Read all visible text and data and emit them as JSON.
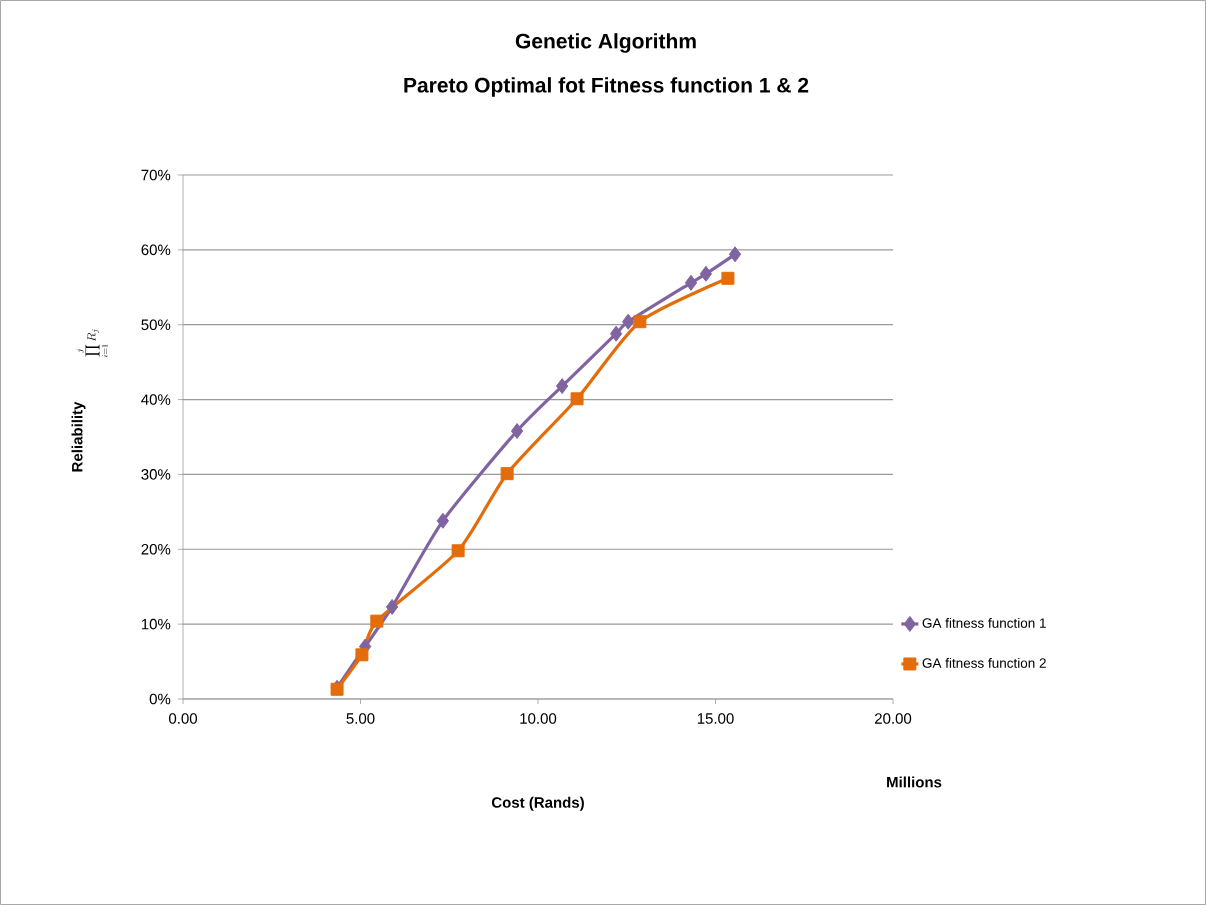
{
  "chart_data": {
    "type": "line",
    "title": "Genetic Algorithm",
    "subtitle": "Pareto Optimal fot Fitness function 1 & 2",
    "xlabel": "Cost (Rands)",
    "ylabel": "Reliability",
    "annotations": [
      "Millions",
      "\\prod_{i=1}^{j} R_j"
    ],
    "xlim": [
      0,
      20
    ],
    "xticks": [
      {
        "value": 0,
        "label": "0.00"
      },
      {
        "value": 5,
        "label": "5.00"
      },
      {
        "value": 10,
        "label": "10.00"
      },
      {
        "value": 15,
        "label": "15.00"
      },
      {
        "value": 20,
        "label": "20.00"
      }
    ],
    "ylim": [
      0,
      70
    ],
    "yticks": [
      {
        "value": 0,
        "label": "0%"
      },
      {
        "value": 10,
        "label": "10%"
      },
      {
        "value": 20,
        "label": "20%"
      },
      {
        "value": 30,
        "label": "30%"
      },
      {
        "value": 40,
        "label": "40%"
      },
      {
        "value": 50,
        "label": "50%"
      },
      {
        "value": 60,
        "label": "60%"
      },
      {
        "value": 70,
        "label": "70%"
      }
    ],
    "grid": "y",
    "legend": "right",
    "line_style": "solid",
    "series": [
      {
        "name": "GA fitness function 1",
        "color": "#8064a2",
        "marker": "diamond",
        "x": [
          4.34,
          5.13,
          5.89,
          7.32,
          9.41,
          10.68,
          12.2,
          12.54,
          14.31,
          14.73,
          15.55
        ],
        "values": [
          1.5,
          7,
          12.3,
          23.8,
          35.8,
          41.8,
          48.8,
          50.4,
          55.6,
          56.8,
          59.4
        ]
      },
      {
        "name": "GA fitness function 2",
        "color": "#e46c0a",
        "marker": "square",
        "x": [
          4.34,
          5.04,
          5.46,
          7.75,
          9.13,
          11.1,
          12.87,
          15.35
        ],
        "values": [
          1.3,
          5.9,
          10.4,
          19.8,
          30.1,
          40.1,
          50.4,
          56.2
        ]
      }
    ]
  }
}
